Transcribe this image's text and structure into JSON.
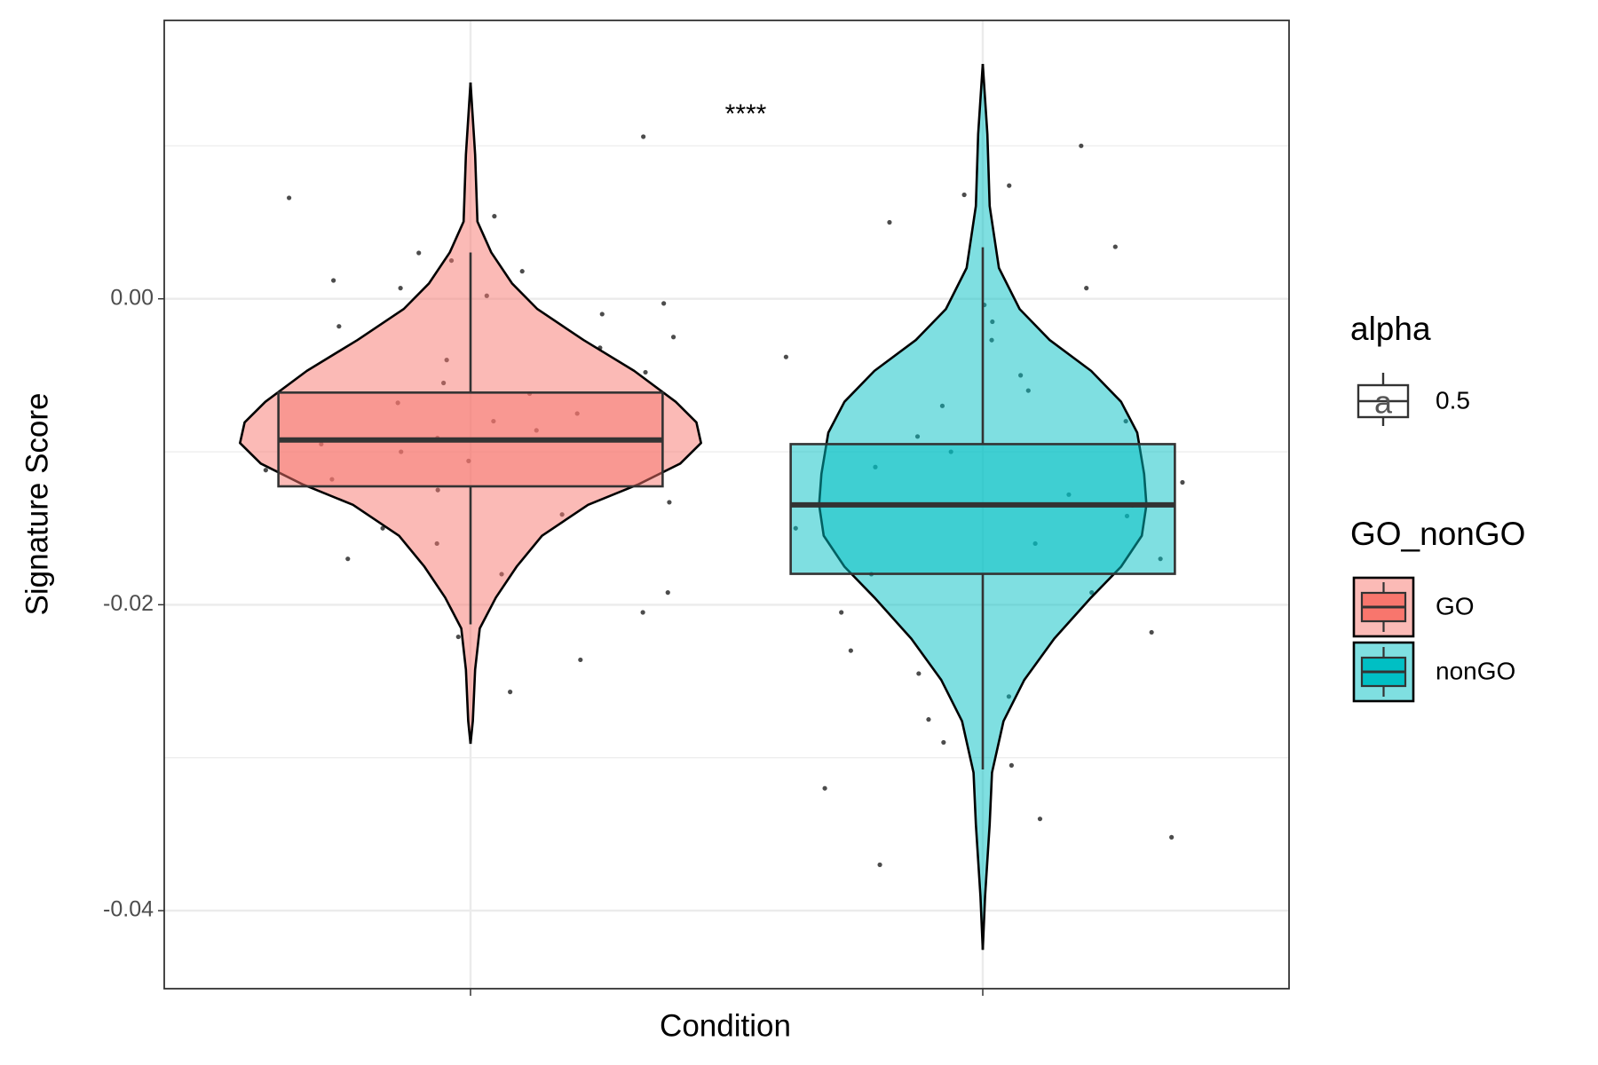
{
  "chart_data": {
    "type": "violin",
    "y_label": "Signature Score",
    "x_label": "Condition",
    "annotation": "****",
    "ylim": [
      -0.0451,
      0.0182
    ],
    "yticks": [
      {
        "value": 0,
        "label": "0.00"
      },
      {
        "value": -0.02,
        "label": "-0.02"
      },
      {
        "value": -0.04,
        "label": "-0.04"
      }
    ],
    "y_minor_grid": [
      0.01,
      -0.01,
      -0.03
    ],
    "grid": true,
    "legend": {
      "alpha": {
        "title": "alpha",
        "key_text": "a",
        "labels": [
          "0.5"
        ]
      },
      "fill": {
        "title": "GO_nonGO"
      }
    },
    "series": [
      {
        "name": "GO",
        "color": "#F8766D",
        "box": {
          "lower_whisker": -0.02128,
          "q1": -0.01226,
          "median": -0.00923,
          "q3": -0.00613,
          "upper_whisker": 0.00303
        },
        "violin": {
          "y": [
            0.01414,
            0.00943,
            0.00505,
            0.00303,
            0.00101,
            -0.00067,
            -0.00269,
            -0.00471,
            -0.00673,
            -0.00808,
            -0.00943,
            -0.01077,
            -0.01212,
            -0.01347,
            -0.01549,
            -0.01751,
            -0.01953,
            -0.02155,
            -0.02424,
            -0.02761,
            -0.02909
          ],
          "width": [
            0,
            0.02,
            0.03,
            0.09,
            0.18,
            0.29,
            0.49,
            0.71,
            0.89,
            0.98,
            1,
            0.91,
            0.73,
            0.51,
            0.31,
            0.2,
            0.11,
            0.04,
            0.02,
            0.01,
            0
          ]
        },
        "points": [
          0.0106,
          0.0066,
          0.0054,
          0.003,
          0.0025,
          0.0018,
          0.0012,
          0.0007,
          0.0002,
          -0.0003,
          -0.001,
          -0.0018,
          -0.0025,
          -0.0032,
          -0.004,
          -0.0048,
          -0.0055,
          -0.0062,
          -0.0068,
          -0.0075,
          -0.008,
          -0.0086,
          -0.0091,
          -0.0095,
          -0.01,
          -0.0106,
          -0.0112,
          -0.0118,
          -0.0125,
          -0.0133,
          -0.0141,
          -0.015,
          -0.016,
          -0.017,
          -0.018,
          -0.0192,
          -0.0205,
          -0.0221,
          -0.0236,
          -0.0257
        ]
      },
      {
        "name": "nonGO",
        "color": "#00BFC4",
        "box": {
          "lower_whisker": -0.03077,
          "q1": -0.01798,
          "median": -0.01347,
          "q3": -0.0095,
          "upper_whisker": 0.00337
        },
        "violin": {
          "y": [
            0.01535,
            0.01077,
            0.00606,
            0.00202,
            -0.00067,
            -0.00269,
            -0.00471,
            -0.00673,
            -0.00875,
            -0.01145,
            -0.01347,
            -0.01549,
            -0.01751,
            -0.01953,
            -0.02222,
            -0.02492,
            -0.02761,
            -0.03098,
            -0.03434,
            -0.03906,
            -0.04256
          ],
          "width": [
            0,
            0.02,
            0.03,
            0.07,
            0.16,
            0.29,
            0.47,
            0.6,
            0.67,
            0.7,
            0.71,
            0.69,
            0.6,
            0.47,
            0.31,
            0.18,
            0.09,
            0.04,
            0.03,
            0.01,
            0
          ]
        },
        "points": [
          0.01,
          0.0074,
          0.0068,
          0.005,
          0.0034,
          0.0007,
          -0.0004,
          -0.0015,
          -0.0027,
          -0.0038,
          -0.005,
          -0.006,
          -0.007,
          -0.008,
          -0.009,
          -0.01,
          -0.011,
          -0.012,
          -0.0128,
          -0.0135,
          -0.0142,
          -0.015,
          -0.016,
          -0.017,
          -0.018,
          -0.0192,
          -0.0205,
          -0.0218,
          -0.023,
          -0.0245,
          -0.026,
          -0.0275,
          -0.029,
          -0.0305,
          -0.032,
          -0.034,
          -0.0352,
          -0.037
        ]
      }
    ]
  }
}
